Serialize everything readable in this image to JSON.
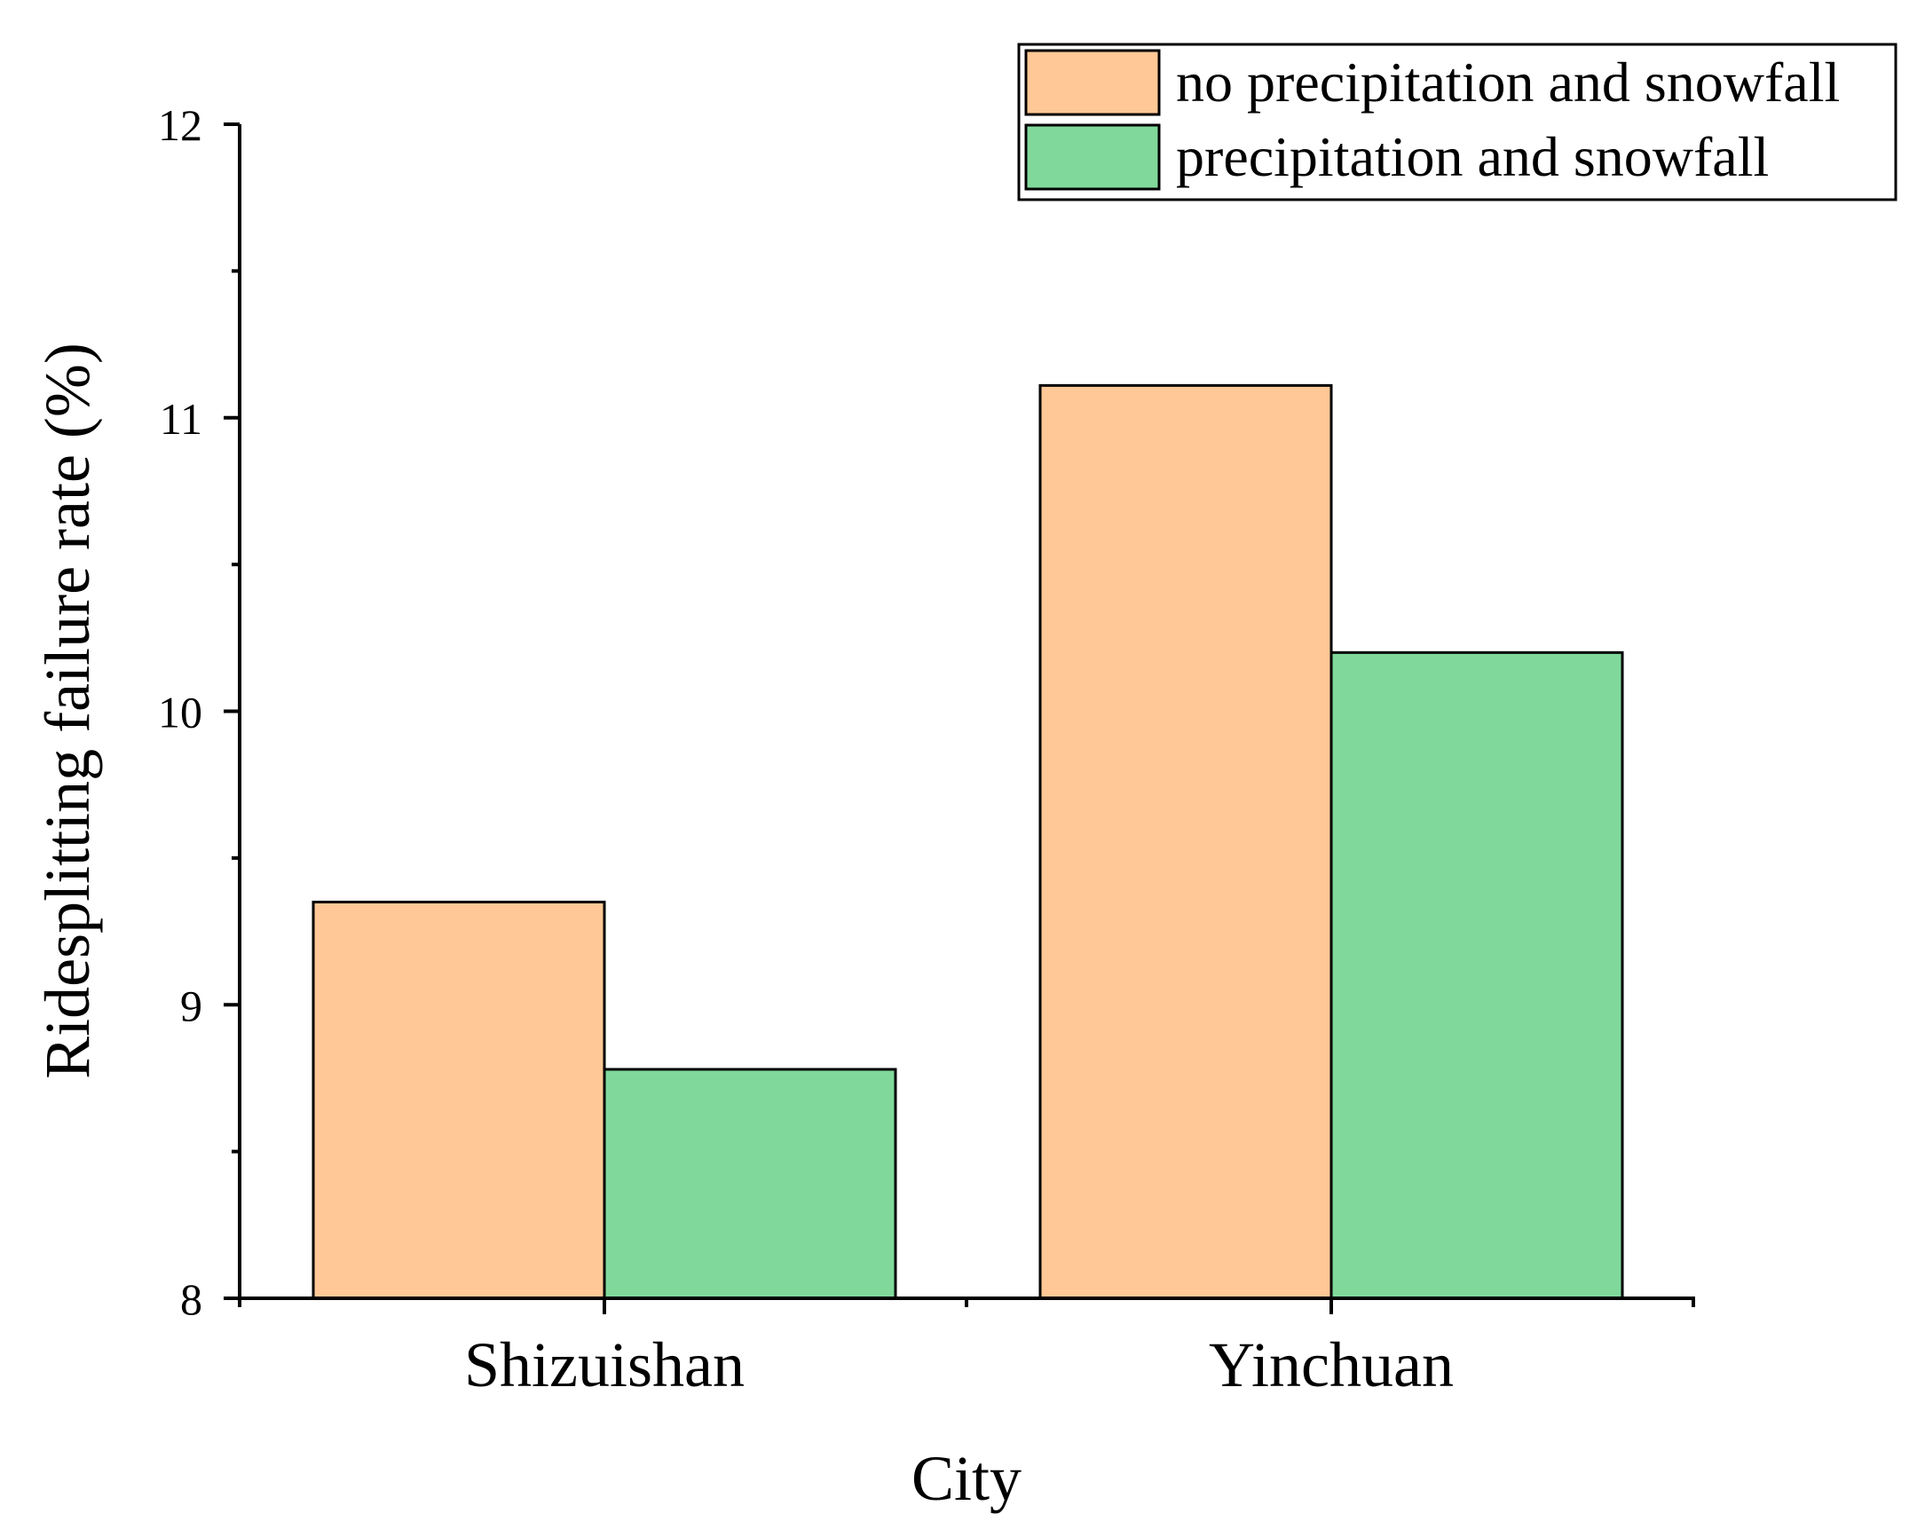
{
  "chart_data": {
    "type": "bar",
    "title": "",
    "xlabel": "City",
    "ylabel": "Ridesplitting failure rate (%)",
    "categories": [
      "Shizuishan",
      "Yinchuan"
    ],
    "series": [
      {
        "name": "no precipitation and snowfall",
        "values": [
          9.35,
          11.11
        ],
        "color": "#FFC896"
      },
      {
        "name": "precipitation and snowfall",
        "values": [
          8.78,
          10.2
        ],
        "color": "#80D99B"
      }
    ],
    "ylim": [
      8,
      12
    ],
    "yticks": [
      "8",
      "9",
      "10",
      "11",
      "12"
    ],
    "grid": false,
    "legend_position": "top-right"
  }
}
